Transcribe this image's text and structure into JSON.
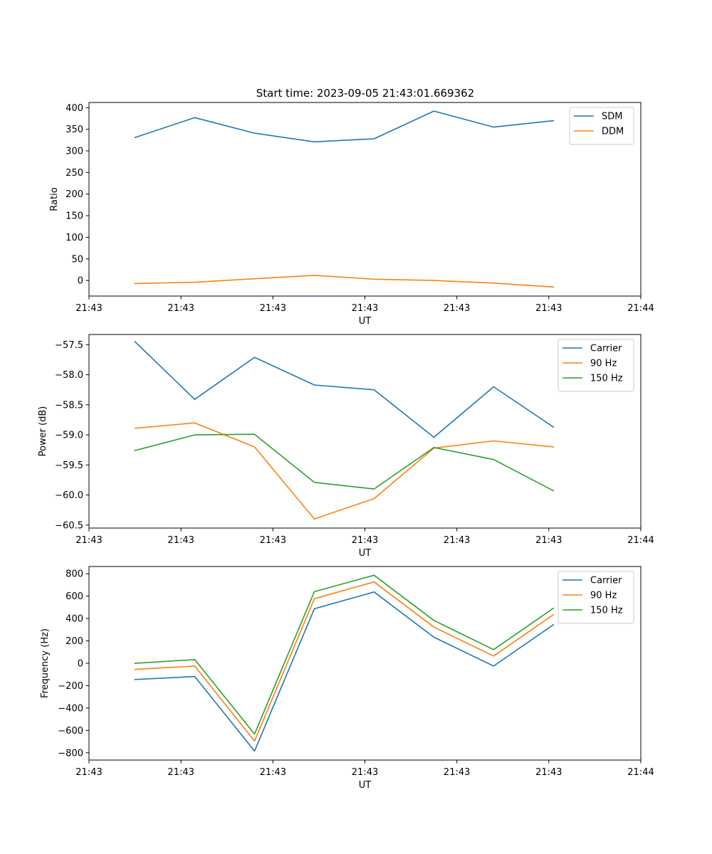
{
  "figure": {
    "title": "Start time: 2023-09-05 21:43:01.669362"
  },
  "colors": {
    "blue": "#1f77b4",
    "orange": "#ff7f0e",
    "green": "#2ca02c"
  },
  "chart_data": [
    {
      "type": "line",
      "id": "ratio",
      "xlabel": "UT",
      "ylabel": "Ratio",
      "xlim": [
        0,
        6
      ],
      "ylim": [
        -36,
        412
      ],
      "x": [
        0.5,
        1.15,
        1.8,
        2.45,
        3.1,
        3.75,
        4.4,
        5.05
      ],
      "xticks": [
        0,
        1,
        2,
        3,
        4,
        5,
        6
      ],
      "xticklabels": [
        "21:43",
        "21:43",
        "21:43",
        "21:43",
        "21:43",
        "21:43",
        "21:44"
      ],
      "yticks": [
        0,
        50,
        100,
        150,
        200,
        250,
        300,
        350,
        400
      ],
      "yticklabels": [
        "0",
        "50",
        "100",
        "150",
        "200",
        "250",
        "300",
        "350",
        "400"
      ],
      "legend": "top-right",
      "series": [
        {
          "name": "SDM",
          "color": "#1f77b4",
          "values": [
            331,
            377,
            341,
            321,
            328,
            392,
            355,
            370
          ]
        },
        {
          "name": "DDM",
          "color": "#ff7f0e",
          "values": [
            -7,
            -4,
            4,
            12,
            3,
            0,
            -6,
            -15
          ]
        }
      ]
    },
    {
      "type": "line",
      "id": "power",
      "xlabel": "UT",
      "ylabel": "Power (dB)",
      "xlim": [
        0,
        6
      ],
      "ylim": [
        -60.55,
        -57.33
      ],
      "x": [
        0.5,
        1.15,
        1.8,
        2.45,
        3.1,
        3.75,
        4.4,
        5.05
      ],
      "xticks": [
        0,
        1,
        2,
        3,
        4,
        5,
        6
      ],
      "xticklabels": [
        "21:43",
        "21:43",
        "21:43",
        "21:43",
        "21:43",
        "21:43",
        "21:44"
      ],
      "yticks": [
        -60.5,
        -60.0,
        -59.5,
        -59.0,
        -58.5,
        -58.0,
        -57.5
      ],
      "yticklabels": [
        "−60.5",
        "−60.0",
        "−59.5",
        "−59.0",
        "−58.5",
        "−58.0",
        "−57.5"
      ],
      "legend": "top-right",
      "series": [
        {
          "name": "Carrier",
          "color": "#1f77b4",
          "values": [
            -57.45,
            -58.41,
            -57.71,
            -58.17,
            -58.25,
            -59.04,
            -58.2,
            -58.87
          ]
        },
        {
          "name": "90 Hz",
          "color": "#ff7f0e",
          "values": [
            -58.89,
            -58.8,
            -59.2,
            -60.4,
            -60.06,
            -59.22,
            -59.1,
            -59.2
          ]
        },
        {
          "name": "150 Hz",
          "color": "#2ca02c",
          "values": [
            -59.26,
            -59.0,
            -58.99,
            -59.79,
            -59.9,
            -59.21,
            -59.41,
            -59.93
          ]
        }
      ]
    },
    {
      "type": "line",
      "id": "frequency",
      "xlabel": "UT",
      "ylabel": "Frequency (Hz)",
      "xlim": [
        0,
        6
      ],
      "ylim": [
        -865,
        865
      ],
      "x": [
        0.5,
        1.15,
        1.8,
        2.45,
        3.1,
        3.75,
        4.4,
        5.05
      ],
      "xticks": [
        0,
        1,
        2,
        3,
        4,
        5,
        6
      ],
      "xticklabels": [
        "21:43",
        "21:43",
        "21:43",
        "21:43",
        "21:43",
        "21:43",
        "21:44"
      ],
      "yticks": [
        -800,
        -600,
        -400,
        -200,
        0,
        200,
        400,
        600,
        800
      ],
      "yticklabels": [
        "−800",
        "−600",
        "−400",
        "−200",
        "0",
        "200",
        "400",
        "600",
        "800"
      ],
      "legend": "top-right",
      "series": [
        {
          "name": "Carrier",
          "color": "#1f77b4",
          "values": [
            -145,
            -118,
            -785,
            487,
            637,
            233,
            -25,
            345
          ]
        },
        {
          "name": "90 Hz",
          "color": "#ff7f0e",
          "values": [
            -55,
            -25,
            -695,
            577,
            727,
            323,
            65,
            435
          ]
        },
        {
          "name": "150 Hz",
          "color": "#2ca02c",
          "values": [
            0,
            33,
            -632,
            640,
            787,
            383,
            122,
            492
          ]
        }
      ]
    }
  ]
}
